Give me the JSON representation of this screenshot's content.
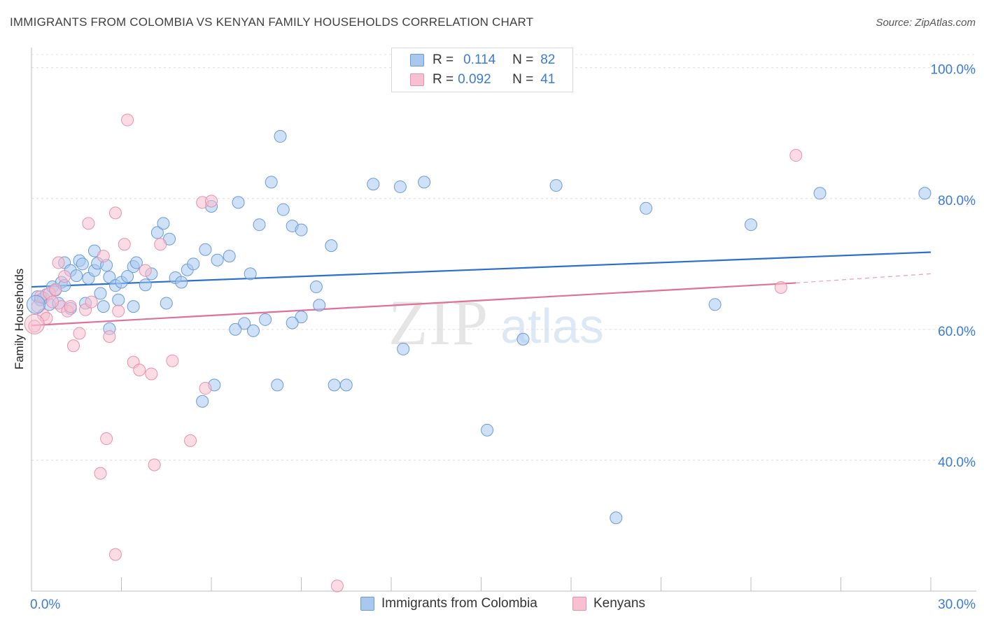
{
  "header": {
    "title": "IMMIGRANTS FROM COLOMBIA VS KENYAN FAMILY HOUSEHOLDS CORRELATION CHART",
    "source": "Source: ZipAtlas.com"
  },
  "watermark": {
    "zip": "ZIP",
    "atlas": "atlas"
  },
  "legend": {
    "rows": [
      {
        "r_label": "R =",
        "r_value": "0.114",
        "n_label": "N =",
        "n_value": "82"
      },
      {
        "r_label": "R =",
        "r_value": "0.092",
        "n_label": "N =",
        "n_value": "41"
      }
    ]
  },
  "bottom_legend": {
    "series1": "Immigrants from Colombia",
    "series2": "Kenyans"
  },
  "colors": {
    "blue_fill": "#a8c8f0",
    "blue_stroke": "#6a9ad8",
    "blue_line": "#2a6fcc",
    "pink_fill": "#f8c0d0",
    "pink_stroke": "#e890ac",
    "pink_line": "#e07098",
    "tick_color": "#3a7bd5"
  },
  "chart_data": {
    "type": "scatter",
    "title": "IMMIGRANTS FROM COLOMBIA VS KENYAN FAMILY HOUSEHOLDS CORRELATION CHART",
    "xlabel": "",
    "ylabel": "Family Households",
    "xlim": [
      0,
      30
    ],
    "ylim": [
      20,
      102
    ],
    "x_tick_labels": [
      {
        "value": 0,
        "label": "0.0%"
      },
      {
        "value": 30,
        "label": "30.0%"
      }
    ],
    "y_tick_labels": [
      {
        "value": 40,
        "label": "40.0%"
      },
      {
        "value": 60,
        "label": "60.0%"
      },
      {
        "value": 80,
        "label": "80.0%"
      },
      {
        "value": 100,
        "label": "100.0%"
      }
    ],
    "series": [
      {
        "name": "Immigrants from Colombia",
        "color": "blue",
        "trend": {
          "x0": 0,
          "y0": 66.5,
          "x1": 30,
          "y1": 71.8
        },
        "points": [
          [
            0.2,
            65.0
          ],
          [
            0.3,
            64.5
          ],
          [
            0.4,
            64.8
          ],
          [
            0.5,
            65.3
          ],
          [
            0.6,
            63.8
          ],
          [
            0.7,
            66.5
          ],
          [
            0.8,
            66.0
          ],
          [
            0.9,
            64.0
          ],
          [
            1.0,
            67.2
          ],
          [
            1.1,
            70.2
          ],
          [
            1.3,
            69.0
          ],
          [
            1.5,
            68.2
          ],
          [
            1.6,
            70.5
          ],
          [
            1.7,
            70.0
          ],
          [
            1.9,
            67.8
          ],
          [
            2.1,
            69.0
          ],
          [
            2.2,
            70.1
          ],
          [
            2.3,
            65.5
          ],
          [
            2.4,
            63.5
          ],
          [
            2.5,
            69.8
          ],
          [
            2.6,
            68.0
          ],
          [
            2.8,
            66.7
          ],
          [
            3.0,
            67.2
          ],
          [
            3.2,
            68.1
          ],
          [
            3.4,
            69.6
          ],
          [
            3.5,
            70.2
          ],
          [
            3.8,
            66.8
          ],
          [
            4.0,
            68.5
          ],
          [
            4.2,
            74.8
          ],
          [
            4.4,
            76.2
          ],
          [
            4.6,
            73.8
          ],
          [
            4.8,
            67.9
          ],
          [
            5.0,
            67.2
          ],
          [
            5.2,
            69.1
          ],
          [
            5.4,
            70.0
          ],
          [
            5.8,
            72.2
          ],
          [
            6.0,
            78.8
          ],
          [
            6.2,
            70.6
          ],
          [
            6.6,
            71.2
          ],
          [
            6.9,
            79.4
          ],
          [
            7.3,
            68.5
          ],
          [
            7.6,
            76.0
          ],
          [
            8.0,
            82.5
          ],
          [
            8.4,
            78.3
          ],
          [
            8.7,
            75.8
          ],
          [
            9.0,
            75.2
          ],
          [
            9.5,
            66.5
          ],
          [
            9.6,
            63.7
          ],
          [
            10.0,
            72.8
          ],
          [
            11.4,
            82.2
          ],
          [
            12.3,
            81.8
          ],
          [
            13.1,
            82.5
          ],
          [
            17.5,
            82.0
          ],
          [
            20.5,
            78.5
          ],
          [
            24.0,
            76.0
          ],
          [
            26.3,
            80.8
          ],
          [
            29.8,
            80.8
          ],
          [
            8.3,
            89.5
          ],
          [
            1.8,
            64.0
          ],
          [
            2.6,
            60.1
          ],
          [
            3.4,
            63.5
          ],
          [
            4.5,
            64.0
          ],
          [
            7.8,
            61.5
          ],
          [
            7.1,
            60.9
          ],
          [
            7.4,
            59.8
          ],
          [
            9.0,
            61.9
          ],
          [
            8.7,
            61.0
          ],
          [
            6.8,
            60.0
          ],
          [
            6.1,
            51.5
          ],
          [
            8.2,
            51.5
          ],
          [
            10.1,
            51.5
          ],
          [
            10.5,
            51.5
          ],
          [
            12.4,
            57.0
          ],
          [
            16.4,
            58.5
          ],
          [
            5.7,
            49.0
          ],
          [
            15.2,
            44.6
          ],
          [
            19.5,
            31.2
          ],
          [
            22.8,
            63.8
          ],
          [
            2.1,
            72.0
          ],
          [
            1.3,
            63.2
          ],
          [
            2.9,
            64.5
          ],
          [
            1.1,
            66.7
          ]
        ]
      },
      {
        "name": "Kenyans",
        "color": "pink",
        "trend": {
          "x0": 0,
          "y0": 60.6,
          "x1": 25.5,
          "y1": 67.1,
          "dash_x1": 30,
          "dash_y1": 68.5
        },
        "points": [
          [
            0.1,
            60.5
          ],
          [
            0.2,
            63.5
          ],
          [
            0.3,
            65.0
          ],
          [
            0.4,
            62.2
          ],
          [
            0.5,
            61.7
          ],
          [
            0.6,
            65.5
          ],
          [
            0.8,
            66.1
          ],
          [
            0.9,
            70.2
          ],
          [
            1.0,
            63.5
          ],
          [
            1.1,
            68.1
          ],
          [
            1.2,
            62.8
          ],
          [
            1.4,
            57.5
          ],
          [
            1.6,
            59.4
          ],
          [
            1.8,
            63.0
          ],
          [
            2.0,
            64.2
          ],
          [
            2.4,
            71.2
          ],
          [
            2.6,
            58.9
          ],
          [
            2.9,
            62.8
          ],
          [
            3.1,
            73.0
          ],
          [
            3.4,
            55.0
          ],
          [
            3.6,
            53.8
          ],
          [
            3.8,
            69.0
          ],
          [
            4.0,
            53.2
          ],
          [
            4.3,
            73.0
          ],
          [
            4.7,
            55.2
          ],
          [
            1.9,
            76.2
          ],
          [
            2.8,
            77.8
          ],
          [
            5.7,
            79.4
          ],
          [
            6.0,
            79.6
          ],
          [
            3.2,
            92.0
          ],
          [
            25.5,
            86.6
          ],
          [
            25.0,
            66.4
          ],
          [
            5.8,
            51.0
          ],
          [
            2.5,
            43.3
          ],
          [
            4.1,
            39.3
          ],
          [
            5.3,
            43.0
          ],
          [
            2.3,
            38.0
          ],
          [
            2.8,
            25.6
          ],
          [
            10.2,
            20.8
          ],
          [
            1.3,
            63.5
          ],
          [
            0.7,
            64.2
          ]
        ]
      }
    ]
  }
}
